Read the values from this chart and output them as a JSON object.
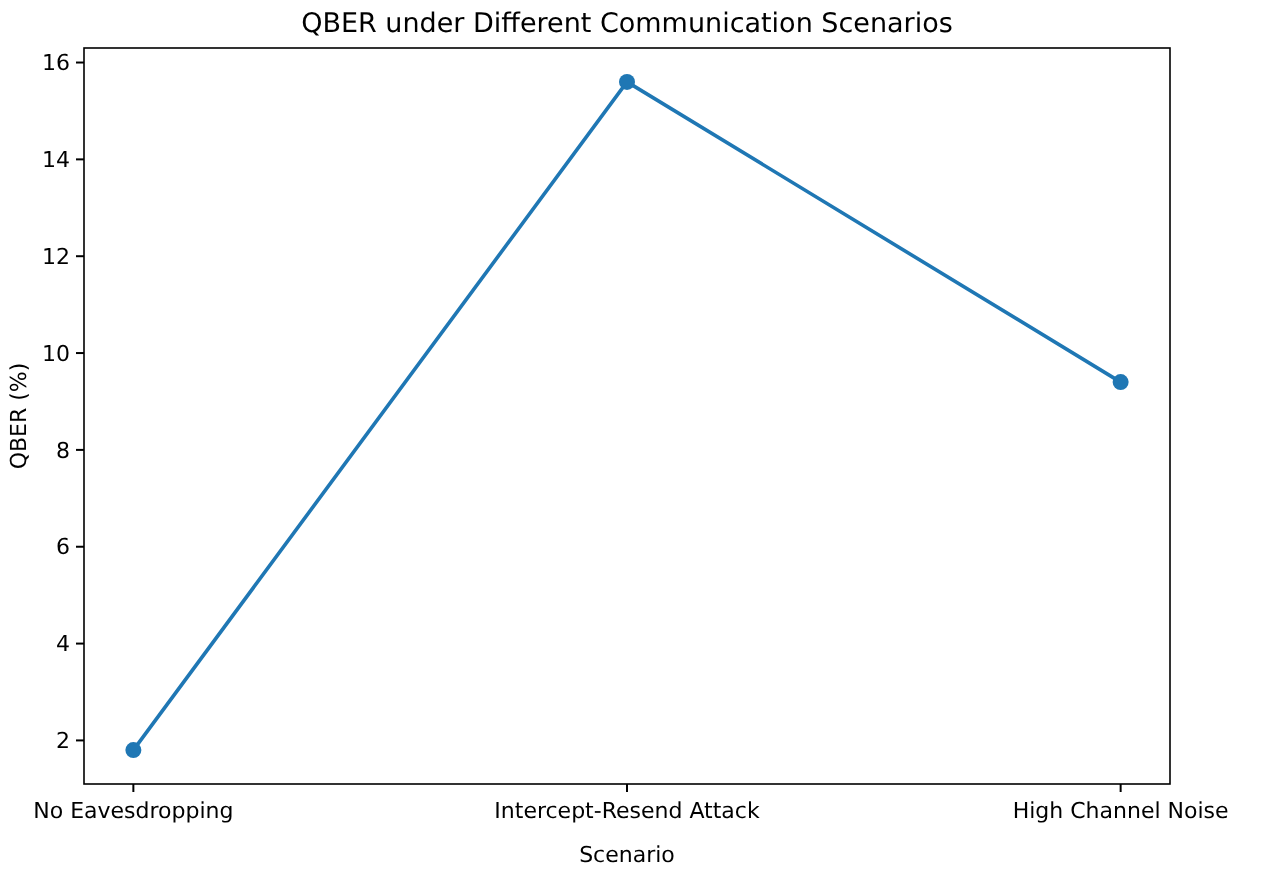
{
  "chart_data": {
    "type": "line",
    "title": "QBER under Different Communication Scenarios",
    "xlabel": "Scenario",
    "ylabel": "QBER (%)",
    "categories": [
      "No Eavesdropping",
      "Intercept-Resend Attack",
      "High Channel Noise"
    ],
    "series": [
      {
        "color": "#1f77b4",
        "values": [
          1.8,
          15.6,
          9.4
        ]
      }
    ],
    "ylim": [
      1.1,
      16.3
    ],
    "yticks": [
      2,
      4,
      6,
      8,
      10,
      12,
      14,
      16
    ],
    "marker": "circle"
  }
}
